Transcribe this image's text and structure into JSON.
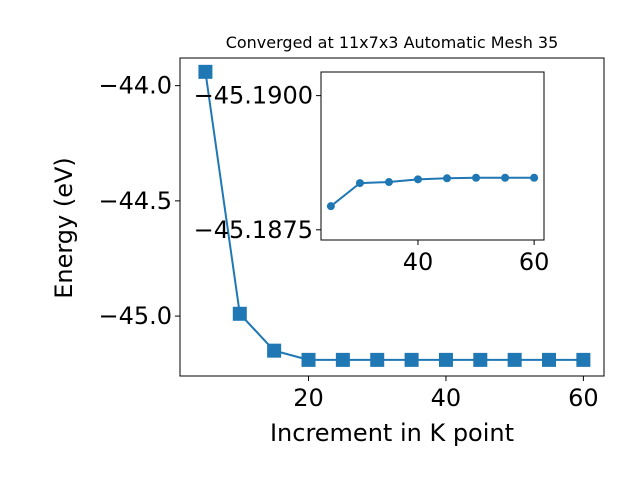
{
  "chart_data": [
    {
      "type": "line",
      "title": "Converged at 11x7x3 Automatic Mesh 35",
      "xlabel": "Increment in K point",
      "ylabel": "Energy (eV)",
      "x": [
        5,
        10,
        15,
        20,
        25,
        30,
        35,
        40,
        45,
        50,
        55,
        60
      ],
      "series": [
        {
          "values": [
            -43.94,
            -44.99,
            -45.15,
            -45.19,
            -45.19,
            -45.19,
            -45.19,
            -45.19,
            -45.19,
            -45.19,
            -45.19,
            -45.19
          ]
        }
      ],
      "xlim": [
        1.3,
        63.0
      ],
      "ylim": [
        -45.26,
        -43.88
      ],
      "xticks": [
        20,
        40,
        60
      ],
      "yticks": [
        -44.0,
        -44.5,
        -45.0
      ],
      "ytick_labels": [
        "−44.0",
        "−44.5",
        "−45.0"
      ],
      "grid": false,
      "marker": "square",
      "color": "#1f77b4"
    },
    {
      "type": "line",
      "title": "",
      "xlabel": "",
      "ylabel": "",
      "x": [
        25,
        30,
        35,
        40,
        45,
        50,
        55,
        60
      ],
      "series": [
        {
          "values": [
            -45.18794,
            -45.18837,
            -45.18839,
            -45.18844,
            -45.18846,
            -45.18847,
            -45.18847,
            -45.18847
          ]
        }
      ],
      "xlim": [
        23.3,
        61.7
      ],
      "ylim": [
        -45.18731,
        -45.19044
      ],
      "xticks": [
        40,
        60
      ],
      "yticks": [
        -45.19,
        -45.1875
      ],
      "ytick_labels": [
        "−45.1900",
        "−45.1875"
      ],
      "grid": false,
      "marker": "circle",
      "color": "#1f77b4"
    }
  ]
}
